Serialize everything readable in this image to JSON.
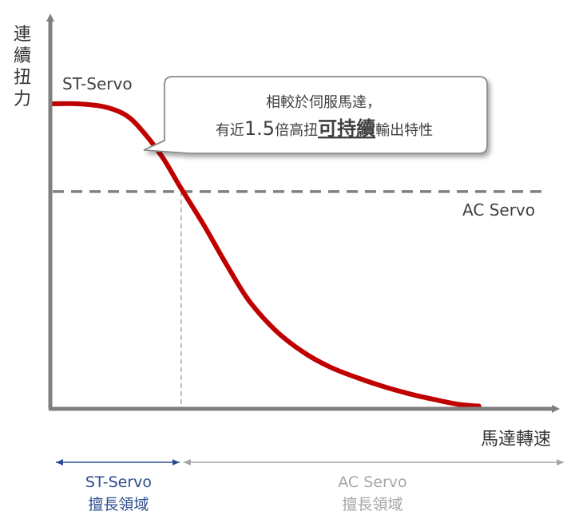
{
  "chart_data": {
    "type": "line",
    "ylabel": "連續扭力",
    "xlabel": "馬達轉速",
    "xlim": [
      0,
      100
    ],
    "ylim": [
      0,
      100
    ],
    "grid": false,
    "series": [
      {
        "name": "ST-Servo",
        "color": "#c00000",
        "x": [
          0,
          6,
          12,
          17,
          21,
          25,
          29,
          34,
          39,
          44,
          50,
          56,
          62,
          68,
          74,
          80,
          86,
          90,
          93,
          95
        ],
        "y": [
          100,
          100,
          99,
          96,
          90,
          82,
          72,
          60,
          47,
          35,
          25,
          18,
          13,
          9.5,
          6.5,
          4,
          2,
          0.8,
          0.3,
          0.1
        ]
      },
      {
        "name": "AC Servo",
        "color": "#808080",
        "style": "dashed",
        "x": [
          0,
          100
        ],
        "y": [
          71,
          71
        ]
      }
    ],
    "annotations": {
      "crossover_x": 29,
      "callout_line1": "相較於伺服馬達，",
      "callout_line2_pre": "有近",
      "callout_line2_num": "1.5",
      "callout_line2_mid": "倍高扭",
      "callout_line2_emph": "可持續",
      "callout_line2_post": "輸出特性"
    },
    "regions": [
      {
        "label": "ST-Servo",
        "sublabel": "擅長領域",
        "color": "#2e4d8f",
        "x_from": 0,
        "x_to": 29
      },
      {
        "label": "AC Servo",
        "sublabel": "擅長領域",
        "color": "#a6a6a6",
        "x_from": 29,
        "x_to": 100
      }
    ]
  }
}
